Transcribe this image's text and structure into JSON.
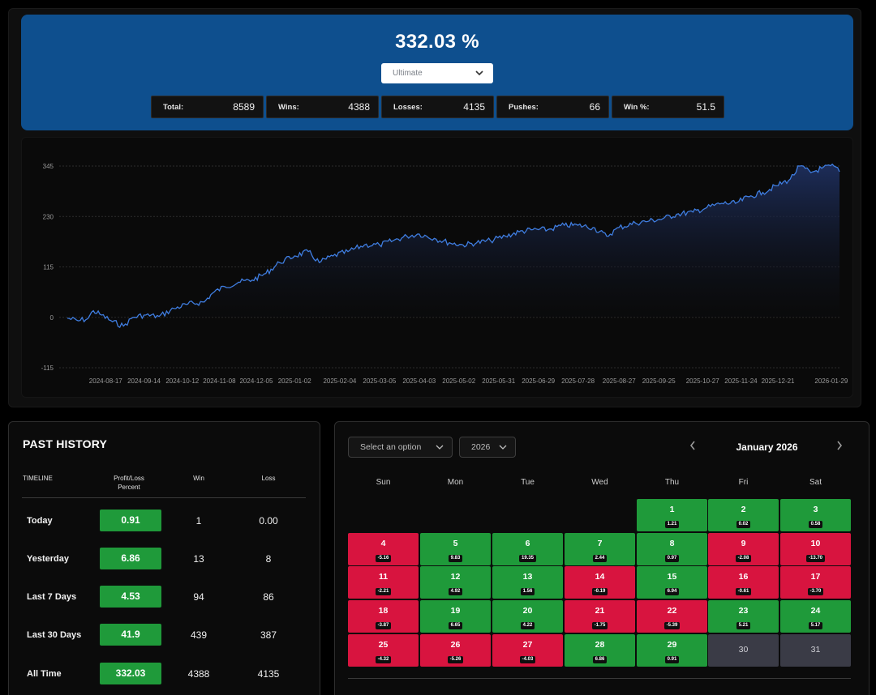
{
  "header": {
    "headline": "332.03 %",
    "strategy_select": "Ultimate",
    "stats": [
      {
        "label": "Total:",
        "value": "8589"
      },
      {
        "label": "Wins:",
        "value": "4388"
      },
      {
        "label": "Losses:",
        "value": "4135"
      },
      {
        "label": "Pushes:",
        "value": "66"
      },
      {
        "label": "Win %:",
        "value": "51.5"
      }
    ]
  },
  "chart_data": {
    "type": "area",
    "title": "",
    "xlabel": "",
    "ylabel": "",
    "ylim": [
      -115,
      345
    ],
    "y_ticks": [
      "345",
      "230",
      "115",
      "0",
      "-115"
    ],
    "x_ticks": [
      "2024-08-17",
      "2024-09-14",
      "2024-10-12",
      "2024-11-08",
      "2024-12-05",
      "2025-01-02",
      "2025-02-04",
      "2025-03-05",
      "2025-04-03",
      "2025-05-02",
      "2025-05-31",
      "2025-06-29",
      "2025-07-28",
      "2025-08-27",
      "2025-09-25",
      "2025-10-27",
      "2025-11-24",
      "2025-12-21",
      "2026-01-29"
    ],
    "grid": true,
    "line_color": "#3f7de0",
    "points": [
      [
        "2024-07-20",
        -2
      ],
      [
        "2024-07-28",
        -8
      ],
      [
        "2024-08-04",
        -3
      ],
      [
        "2024-08-08",
        15
      ],
      [
        "2024-08-14",
        5
      ],
      [
        "2024-08-22",
        -10
      ],
      [
        "2024-08-30",
        -20
      ],
      [
        "2024-09-06",
        0
      ],
      [
        "2024-09-14",
        5
      ],
      [
        "2024-09-25",
        2
      ],
      [
        "2024-10-06",
        20
      ],
      [
        "2024-10-16",
        30
      ],
      [
        "2024-10-28",
        35
      ],
      [
        "2024-11-03",
        55
      ],
      [
        "2024-11-12",
        70
      ],
      [
        "2024-11-22",
        80
      ],
      [
        "2024-12-02",
        85
      ],
      [
        "2024-12-12",
        100
      ],
      [
        "2024-12-22",
        125
      ],
      [
        "2025-01-02",
        140
      ],
      [
        "2025-01-12",
        150
      ],
      [
        "2025-01-20",
        125
      ],
      [
        "2025-01-30",
        140
      ],
      [
        "2025-02-10",
        150
      ],
      [
        "2025-02-22",
        165
      ],
      [
        "2025-03-05",
        165
      ],
      [
        "2025-03-15",
        175
      ],
      [
        "2025-03-25",
        185
      ],
      [
        "2025-04-03",
        190
      ],
      [
        "2025-04-14",
        180
      ],
      [
        "2025-04-25",
        170
      ],
      [
        "2025-05-05",
        165
      ],
      [
        "2025-05-15",
        170
      ],
      [
        "2025-05-25",
        175
      ],
      [
        "2025-06-05",
        185
      ],
      [
        "2025-06-15",
        195
      ],
      [
        "2025-06-25",
        200
      ],
      [
        "2025-07-06",
        200
      ],
      [
        "2025-07-18",
        210
      ],
      [
        "2025-07-28",
        210
      ],
      [
        "2025-08-08",
        205
      ],
      [
        "2025-08-18",
        185
      ],
      [
        "2025-08-27",
        205
      ],
      [
        "2025-09-08",
        215
      ],
      [
        "2025-09-18",
        220
      ],
      [
        "2025-09-28",
        225
      ],
      [
        "2025-10-08",
        235
      ],
      [
        "2025-10-20",
        240
      ],
      [
        "2025-10-30",
        250
      ],
      [
        "2025-11-10",
        260
      ],
      [
        "2025-11-20",
        260
      ],
      [
        "2025-11-30",
        275
      ],
      [
        "2025-12-10",
        285
      ],
      [
        "2025-12-20",
        300
      ],
      [
        "2025-12-30",
        315
      ],
      [
        "2026-01-06",
        345
      ],
      [
        "2026-01-14",
        330
      ],
      [
        "2026-01-22",
        340
      ],
      [
        "2026-01-31",
        345
      ],
      [
        "2026-02-04",
        332
      ]
    ]
  },
  "past_history": {
    "title": "PAST HISTORY",
    "headers": {
      "timeline": "TIMELINE",
      "pl_line1": "Profit/Loss",
      "pl_line2": "Percent",
      "win": "Win",
      "loss": "Loss"
    },
    "rows": [
      {
        "timeline": "Today",
        "pl": "0.91",
        "win": "1",
        "loss": "0.00"
      },
      {
        "timeline": "Yesterday",
        "pl": "6.86",
        "win": "13",
        "loss": "8"
      },
      {
        "timeline": "Last 7 Days",
        "pl": "4.53",
        "win": "94",
        "loss": "86"
      },
      {
        "timeline": "Last 30 Days",
        "pl": "41.9",
        "win": "439",
        "loss": "387"
      },
      {
        "timeline": "All Time",
        "pl": "332.03",
        "win": "4388",
        "loss": "4135"
      }
    ]
  },
  "calendar": {
    "option_select": "Select an option",
    "year_select": "2026",
    "month_label": "January 2026",
    "prev_icon": "chevron-left-icon",
    "next_icon": "chevron-right-icon",
    "weekdays": [
      "Sun",
      "Mon",
      "Tue",
      "Wed",
      "Thu",
      "Fri",
      "Sat"
    ],
    "first_weekday_index": 4,
    "colors": {
      "positive": "#1f9a3a",
      "negative": "#d8143f",
      "none": "#3a3b46"
    },
    "days": [
      {
        "day": "1",
        "value": "1.21",
        "status": "positive"
      },
      {
        "day": "2",
        "value": "0.02",
        "status": "positive"
      },
      {
        "day": "3",
        "value": "0.58",
        "status": "positive"
      },
      {
        "day": "4",
        "value": "-5.16",
        "status": "negative"
      },
      {
        "day": "5",
        "value": "9.83",
        "status": "positive"
      },
      {
        "day": "6",
        "value": "19.35",
        "status": "positive"
      },
      {
        "day": "7",
        "value": "2.44",
        "status": "positive"
      },
      {
        "day": "8",
        "value": "0.97",
        "status": "positive"
      },
      {
        "day": "9",
        "value": "-2.08",
        "status": "negative"
      },
      {
        "day": "10",
        "value": "-13.70",
        "status": "negative"
      },
      {
        "day": "11",
        "value": "-2.21",
        "status": "negative"
      },
      {
        "day": "12",
        "value": "4.92",
        "status": "positive"
      },
      {
        "day": "13",
        "value": "1.56",
        "status": "positive"
      },
      {
        "day": "14",
        "value": "-0.19",
        "status": "negative"
      },
      {
        "day": "15",
        "value": "6.94",
        "status": "positive"
      },
      {
        "day": "16",
        "value": "-0.61",
        "status": "negative"
      },
      {
        "day": "17",
        "value": "-3.70",
        "status": "negative"
      },
      {
        "day": "18",
        "value": "-3.87",
        "status": "negative"
      },
      {
        "day": "19",
        "value": "6.65",
        "status": "positive"
      },
      {
        "day": "20",
        "value": "4.22",
        "status": "positive"
      },
      {
        "day": "21",
        "value": "-1.75",
        "status": "negative"
      },
      {
        "day": "22",
        "value": "-5.39",
        "status": "negative"
      },
      {
        "day": "23",
        "value": "5.21",
        "status": "positive"
      },
      {
        "day": "24",
        "value": "5.17",
        "status": "positive"
      },
      {
        "day": "25",
        "value": "-4.32",
        "status": "negative"
      },
      {
        "day": "26",
        "value": "-5.26",
        "status": "negative"
      },
      {
        "day": "27",
        "value": "-4.03",
        "status": "negative"
      },
      {
        "day": "28",
        "value": "6.86",
        "status": "positive"
      },
      {
        "day": "29",
        "value": "0.91",
        "status": "positive"
      },
      {
        "day": "30",
        "value": "",
        "status": "none"
      },
      {
        "day": "31",
        "value": "",
        "status": "none"
      }
    ]
  }
}
